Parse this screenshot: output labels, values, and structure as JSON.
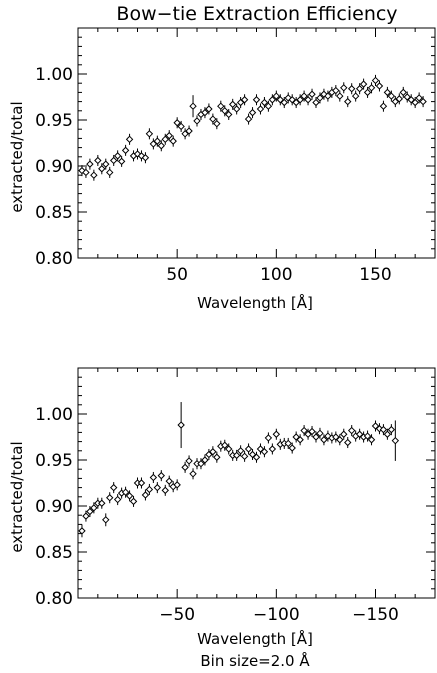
{
  "title": "Bow−tie Extraction Efficiency",
  "footnote": "Bin size=2.0 Å",
  "chart_data": [
    {
      "type": "scatter",
      "marker": "open-diamond",
      "error_bars": true,
      "xlabel": "Wavelength [Å]",
      "ylabel": "extracted/total",
      "xlim": [
        0,
        180
      ],
      "ylim": [
        0.8,
        1.05
      ],
      "xticks": [
        50,
        100,
        150
      ],
      "xtick_labels": [
        "50",
        "100",
        "150"
      ],
      "yticks": [
        0.8,
        0.85,
        0.9,
        0.95,
        1.0
      ],
      "ytick_labels": [
        "0.80",
        "0.85",
        "0.90",
        "0.95",
        "1.00"
      ],
      "series": [
        {
          "x": [
            2,
            4,
            6,
            8,
            10,
            12,
            14,
            16,
            18,
            20,
            22,
            24,
            26,
            28,
            30,
            32,
            34,
            36,
            38,
            40,
            42,
            44,
            46,
            48,
            50,
            52,
            54,
            56,
            58,
            60,
            62,
            64,
            66,
            68,
            70,
            72,
            74,
            76,
            78,
            80,
            82,
            84,
            86,
            88,
            90,
            92,
            94,
            96,
            98,
            100,
            102,
            104,
            106,
            108,
            110,
            112,
            114,
            116,
            118,
            120,
            122,
            124,
            126,
            128,
            130,
            132,
            134,
            136,
            138,
            140,
            142,
            144,
            146,
            148,
            150,
            152,
            154,
            156,
            158,
            160,
            162,
            164,
            166,
            168,
            170,
            172,
            174
          ],
          "y": [
            0.895,
            0.893,
            0.902,
            0.89,
            0.906,
            0.897,
            0.902,
            0.893,
            0.906,
            0.911,
            0.905,
            0.917,
            0.929,
            0.911,
            0.913,
            0.911,
            0.909,
            0.935,
            0.924,
            0.927,
            0.922,
            0.929,
            0.933,
            0.927,
            0.947,
            0.943,
            0.935,
            0.938,
            0.965,
            0.949,
            0.956,
            0.958,
            0.962,
            0.951,
            0.946,
            0.965,
            0.96,
            0.956,
            0.967,
            0.962,
            0.969,
            0.972,
            0.951,
            0.958,
            0.972,
            0.962,
            0.969,
            0.965,
            0.972,
            0.976,
            0.972,
            0.969,
            0.974,
            0.972,
            0.969,
            0.972,
            0.976,
            0.972,
            0.978,
            0.969,
            0.974,
            0.978,
            0.976,
            0.98,
            0.982,
            0.976,
            0.985,
            0.97,
            0.984,
            0.976,
            0.984,
            0.989,
            0.98,
            0.985,
            0.993,
            0.987,
            0.965,
            0.98,
            0.976,
            0.97,
            0.973,
            0.98,
            0.975,
            0.972,
            0.969,
            0.974,
            0.97
          ],
          "yerr": [
            0.006,
            0.006,
            0.006,
            0.006,
            0.006,
            0.006,
            0.006,
            0.006,
            0.006,
            0.006,
            0.006,
            0.006,
            0.006,
            0.006,
            0.006,
            0.006,
            0.006,
            0.006,
            0.006,
            0.006,
            0.006,
            0.006,
            0.006,
            0.006,
            0.006,
            0.006,
            0.006,
            0.006,
            0.012,
            0.006,
            0.006,
            0.006,
            0.006,
            0.006,
            0.006,
            0.006,
            0.006,
            0.006,
            0.006,
            0.006,
            0.006,
            0.006,
            0.006,
            0.006,
            0.006,
            0.006,
            0.006,
            0.006,
            0.006,
            0.006,
            0.006,
            0.006,
            0.006,
            0.006,
            0.006,
            0.006,
            0.006,
            0.006,
            0.006,
            0.006,
            0.006,
            0.006,
            0.006,
            0.006,
            0.006,
            0.006,
            0.006,
            0.006,
            0.006,
            0.006,
            0.006,
            0.006,
            0.006,
            0.006,
            0.006,
            0.006,
            0.006,
            0.006,
            0.006,
            0.006,
            0.006,
            0.006,
            0.006,
            0.006,
            0.006,
            0.006,
            0.006
          ]
        }
      ]
    },
    {
      "type": "scatter",
      "marker": "open-diamond",
      "error_bars": true,
      "xlabel": "Wavelength [Å]",
      "ylabel": "extracted/total",
      "xlim": [
        0,
        -180
      ],
      "ylim": [
        0.8,
        1.05
      ],
      "xticks": [
        -50,
        -100,
        -150
      ],
      "xtick_labels": [
        "−50",
        "−100",
        "−150"
      ],
      "yticks": [
        0.8,
        0.85,
        0.9,
        0.95,
        1.0
      ],
      "ytick_labels": [
        "0.80",
        "0.85",
        "0.90",
        "0.95",
        "1.00"
      ],
      "series": [
        {
          "x": [
            -2,
            -4,
            -6,
            -8,
            -10,
            -12,
            -14,
            -16,
            -18,
            -20,
            -22,
            -24,
            -26,
            -28,
            -30,
            -32,
            -34,
            -36,
            -38,
            -40,
            -42,
            -44,
            -46,
            -48,
            -50,
            -52,
            -54,
            -56,
            -58,
            -60,
            -62,
            -64,
            -66,
            -68,
            -70,
            -72,
            -74,
            -76,
            -78,
            -80,
            -82,
            -84,
            -86,
            -88,
            -90,
            -92,
            -94,
            -96,
            -98,
            -100,
            -102,
            -104,
            -106,
            -108,
            -110,
            -112,
            -114,
            -116,
            -118,
            -120,
            -122,
            -124,
            -126,
            -128,
            -130,
            -132,
            -134,
            -136,
            -138,
            -140,
            -142,
            -144,
            -146,
            -148,
            -150,
            -152,
            -154,
            -156,
            -158,
            -160
          ],
          "y": [
            0.873,
            0.889,
            0.894,
            0.898,
            0.903,
            0.903,
            0.885,
            0.909,
            0.92,
            0.907,
            0.914,
            0.915,
            0.911,
            0.905,
            0.925,
            0.925,
            0.912,
            0.918,
            0.931,
            0.92,
            0.933,
            0.917,
            0.927,
            0.921,
            0.923,
            0.988,
            0.942,
            0.949,
            0.935,
            0.946,
            0.946,
            0.95,
            0.956,
            0.959,
            0.953,
            0.965,
            0.966,
            0.962,
            0.955,
            0.955,
            0.96,
            0.954,
            0.962,
            0.956,
            0.953,
            0.962,
            0.959,
            0.974,
            0.962,
            0.978,
            0.967,
            0.968,
            0.968,
            0.963,
            0.975,
            0.972,
            0.982,
            0.978,
            0.981,
            0.975,
            0.979,
            0.972,
            0.976,
            0.974,
            0.975,
            0.972,
            0.978,
            0.969,
            0.982,
            0.976,
            0.978,
            0.975,
            0.976,
            0.972,
            0.987,
            0.984,
            0.983,
            0.978,
            0.983,
            0.971
          ],
          "yerr": [
            0.007,
            0.006,
            0.006,
            0.006,
            0.006,
            0.006,
            0.007,
            0.006,
            0.006,
            0.006,
            0.006,
            0.006,
            0.006,
            0.006,
            0.006,
            0.006,
            0.006,
            0.006,
            0.006,
            0.006,
            0.006,
            0.006,
            0.006,
            0.006,
            0.006,
            0.025,
            0.006,
            0.006,
            0.006,
            0.006,
            0.006,
            0.006,
            0.006,
            0.006,
            0.006,
            0.006,
            0.006,
            0.006,
            0.006,
            0.006,
            0.006,
            0.006,
            0.006,
            0.006,
            0.006,
            0.006,
            0.006,
            0.006,
            0.006,
            0.006,
            0.006,
            0.006,
            0.006,
            0.006,
            0.006,
            0.006,
            0.006,
            0.006,
            0.006,
            0.006,
            0.006,
            0.006,
            0.006,
            0.006,
            0.006,
            0.006,
            0.006,
            0.006,
            0.006,
            0.006,
            0.006,
            0.006,
            0.006,
            0.006,
            0.006,
            0.006,
            0.006,
            0.006,
            0.006,
            0.022
          ]
        }
      ]
    }
  ]
}
